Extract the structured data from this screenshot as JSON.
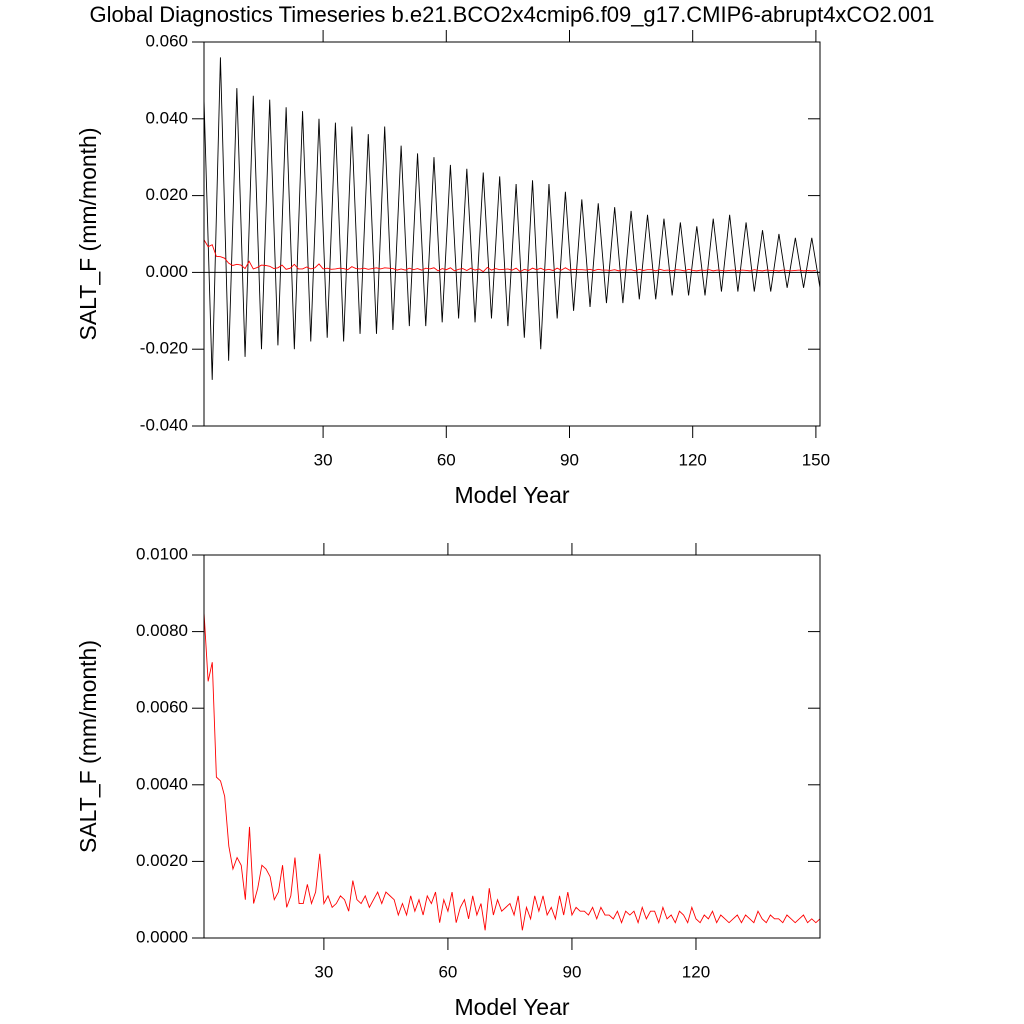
{
  "chart_data": [
    {
      "type": "line",
      "title": "Global Diagnostics Timeseries b.e21.BCO2x4cmip6.f09_g17.CMIP6-abrupt4xCO2.001",
      "x_label": "Model Year",
      "y_label": "SALT_F (mm/month)",
      "xlim": [
        1,
        151
      ],
      "xticks": [
        30,
        60,
        90,
        120,
        150
      ],
      "ylim": [
        -0.04,
        0.06
      ],
      "yticks": [
        {
          "value": -0.04,
          "label": "-0.040"
        },
        {
          "value": -0.02,
          "label": "-0.020"
        },
        {
          "value": 0,
          "label": "0.000"
        },
        {
          "value": 0.02,
          "label": "0.020"
        },
        {
          "value": 0.04,
          "label": "0.040"
        },
        {
          "value": 0.06,
          "label": "0.060"
        }
      ],
      "zero_line": true,
      "series": [
        {
          "color": "#000000",
          "x": [
            1,
            3,
            5,
            7,
            9,
            11,
            13,
            15,
            17,
            19,
            21,
            23,
            25,
            27,
            29,
            31,
            33,
            35,
            37,
            39,
            41,
            43,
            45,
            47,
            49,
            51,
            53,
            55,
            57,
            59,
            61,
            63,
            65,
            67,
            69,
            71,
            73,
            75,
            77,
            79,
            81,
            83,
            85,
            87,
            89,
            91,
            93,
            95,
            97,
            99,
            101,
            103,
            105,
            107,
            109,
            111,
            113,
            115,
            117,
            119,
            121,
            123,
            125,
            127,
            129,
            131,
            133,
            135,
            137,
            139,
            141,
            143,
            145,
            147,
            149,
            151
          ],
          "values": [
            0.045,
            -0.028,
            0.056,
            -0.023,
            0.048,
            -0.022,
            0.046,
            -0.02,
            0.045,
            -0.019,
            0.043,
            -0.02,
            0.042,
            -0.018,
            0.04,
            -0.017,
            0.039,
            -0.018,
            0.038,
            -0.016,
            0.036,
            -0.016,
            0.038,
            -0.015,
            0.033,
            -0.014,
            0.031,
            -0.014,
            0.03,
            -0.013,
            0.028,
            -0.012,
            0.027,
            -0.013,
            0.026,
            -0.012,
            0.025,
            -0.014,
            0.023,
            -0.017,
            0.024,
            -0.02,
            0.023,
            -0.012,
            0.021,
            -0.01,
            0.019,
            -0.009,
            0.018,
            -0.008,
            0.017,
            -0.008,
            0.016,
            -0.007,
            0.015,
            -0.007,
            0.014,
            -0.006,
            0.013,
            -0.006,
            0.012,
            -0.006,
            0.014,
            -0.005,
            0.015,
            -0.005,
            0.013,
            -0.005,
            0.011,
            -0.005,
            0.01,
            -0.004,
            0.009,
            -0.004,
            0.009,
            -0.004
          ]
        },
        {
          "color": "#ff0000",
          "x": [
            1,
            2,
            3,
            4,
            5,
            6,
            7,
            8,
            9,
            10,
            11,
            12,
            13,
            14,
            15,
            16,
            17,
            18,
            19,
            20,
            21,
            22,
            23,
            24,
            25,
            26,
            27,
            28,
            29,
            30,
            31,
            32,
            33,
            34,
            35,
            36,
            37,
            38,
            39,
            40,
            41,
            42,
            43,
            44,
            45,
            46,
            47,
            48,
            49,
            50,
            51,
            52,
            53,
            54,
            55,
            56,
            57,
            58,
            59,
            60,
            61,
            62,
            63,
            64,
            65,
            66,
            67,
            68,
            69,
            70,
            71,
            72,
            73,
            74,
            75,
            76,
            77,
            78,
            79,
            80,
            81,
            82,
            83,
            84,
            85,
            86,
            87,
            88,
            89,
            90,
            91,
            92,
            93,
            94,
            95,
            96,
            97,
            98,
            99,
            100,
            101,
            102,
            103,
            104,
            105,
            106,
            107,
            108,
            109,
            110,
            111,
            112,
            113,
            114,
            115,
            116,
            117,
            118,
            119,
            120,
            121,
            122,
            123,
            124,
            125,
            126,
            127,
            128,
            129,
            130,
            131,
            132,
            133,
            134,
            135,
            136,
            137,
            138,
            139,
            140,
            141,
            142,
            143,
            144,
            145,
            146,
            147,
            148,
            149,
            150
          ],
          "values": [
            0.0085,
            0.0067,
            0.0072,
            0.0042,
            0.0041,
            0.0037,
            0.0024,
            0.0018,
            0.0021,
            0.0019,
            0.001,
            0.0029,
            0.0009,
            0.0013,
            0.0019,
            0.0018,
            0.0016,
            0.001,
            0.0012,
            0.0019,
            0.0008,
            0.0011,
            0.0021,
            0.0009,
            0.0009,
            0.0014,
            0.0009,
            0.0012,
            0.0022,
            0.0009,
            0.0011,
            0.0008,
            0.0009,
            0.0011,
            0.001,
            0.0007,
            0.0015,
            0.001,
            0.0009,
            0.0011,
            0.0008,
            0.001,
            0.0012,
            0.0009,
            0.0012,
            0.0011,
            0.001,
            0.0006,
            0.0009,
            0.0006,
            0.0011,
            0.0007,
            0.001,
            0.0006,
            0.0011,
            0.0009,
            0.0012,
            0.0004,
            0.001,
            0.0007,
            0.0012,
            0.0004,
            0.0008,
            0.001,
            0.0005,
            0.0011,
            0.0006,
            0.0009,
            0.0002,
            0.0013,
            0.0006,
            0.001,
            0.0007,
            0.0008,
            0.0009,
            0.0006,
            0.0011,
            0.0002,
            0.0008,
            0.0005,
            0.0011,
            0.0007,
            0.0011,
            0.0006,
            0.0008,
            0.0005,
            0.0011,
            0.0006,
            0.0012,
            0.0006,
            0.0008,
            0.0007,
            0.0007,
            0.0006,
            0.0008,
            0.0005,
            0.0008,
            0.0006,
            0.0006,
            0.0005,
            0.0007,
            0.0004,
            0.0007,
            0.0006,
            0.0007,
            0.0004,
            0.0008,
            0.0005,
            0.0007,
            0.0007,
            0.0004,
            0.0008,
            0.0005,
            0.0006,
            0.0004,
            0.0007,
            0.0006,
            0.0004,
            0.0008,
            0.0005,
            0.0004,
            0.0006,
            0.0005,
            0.0007,
            0.0004,
            0.0006,
            0.0005,
            0.0004,
            0.0005,
            0.0006,
            0.0004,
            0.0006,
            0.0005,
            0.0004,
            0.0007,
            0.0005,
            0.0004,
            0.0006,
            0.0005,
            0.0005,
            0.0004,
            0.0006,
            0.0005,
            0.0004,
            0.0005,
            0.0006,
            0.0004,
            0.0005,
            0.0004,
            0.0005
          ]
        }
      ]
    },
    {
      "type": "line",
      "x_label": "Model Year",
      "y_label": "SALT_F (mm/month)",
      "xlim": [
        1,
        150
      ],
      "xticks": [
        30,
        60,
        90,
        120
      ],
      "ylim": [
        0,
        0.01
      ],
      "yticks": [
        {
          "value": 0,
          "label": "0.0000"
        },
        {
          "value": 0.002,
          "label": "0.0020"
        },
        {
          "value": 0.004,
          "label": "0.0040"
        },
        {
          "value": 0.006,
          "label": "0.0060"
        },
        {
          "value": 0.008,
          "label": "0.0080"
        },
        {
          "value": 0.01,
          "label": "0.0100"
        }
      ],
      "zero_line": false,
      "series": [
        {
          "color": "#ff0000",
          "x": [
            1,
            2,
            3,
            4,
            5,
            6,
            7,
            8,
            9,
            10,
            11,
            12,
            13,
            14,
            15,
            16,
            17,
            18,
            19,
            20,
            21,
            22,
            23,
            24,
            25,
            26,
            27,
            28,
            29,
            30,
            31,
            32,
            33,
            34,
            35,
            36,
            37,
            38,
            39,
            40,
            41,
            42,
            43,
            44,
            45,
            46,
            47,
            48,
            49,
            50,
            51,
            52,
            53,
            54,
            55,
            56,
            57,
            58,
            59,
            60,
            61,
            62,
            63,
            64,
            65,
            66,
            67,
            68,
            69,
            70,
            71,
            72,
            73,
            74,
            75,
            76,
            77,
            78,
            79,
            80,
            81,
            82,
            83,
            84,
            85,
            86,
            87,
            88,
            89,
            90,
            91,
            92,
            93,
            94,
            95,
            96,
            97,
            98,
            99,
            100,
            101,
            102,
            103,
            104,
            105,
            106,
            107,
            108,
            109,
            110,
            111,
            112,
            113,
            114,
            115,
            116,
            117,
            118,
            119,
            120,
            121,
            122,
            123,
            124,
            125,
            126,
            127,
            128,
            129,
            130,
            131,
            132,
            133,
            134,
            135,
            136,
            137,
            138,
            139,
            140,
            141,
            142,
            143,
            144,
            145,
            146,
            147,
            148,
            149,
            150
          ],
          "values": [
            0.0085,
            0.0067,
            0.0072,
            0.0042,
            0.0041,
            0.0037,
            0.0024,
            0.0018,
            0.0021,
            0.0019,
            0.001,
            0.0029,
            0.0009,
            0.0013,
            0.0019,
            0.0018,
            0.0016,
            0.001,
            0.0012,
            0.0019,
            0.0008,
            0.0011,
            0.0021,
            0.0009,
            0.0009,
            0.0014,
            0.0009,
            0.0012,
            0.0022,
            0.0009,
            0.0011,
            0.0008,
            0.0009,
            0.0011,
            0.001,
            0.0007,
            0.0015,
            0.001,
            0.0009,
            0.0011,
            0.0008,
            0.001,
            0.0012,
            0.0009,
            0.0012,
            0.0011,
            0.001,
            0.0006,
            0.0009,
            0.0006,
            0.0011,
            0.0007,
            0.001,
            0.0006,
            0.0011,
            0.0009,
            0.0012,
            0.0004,
            0.001,
            0.0007,
            0.0012,
            0.0004,
            0.0008,
            0.001,
            0.0005,
            0.0011,
            0.0006,
            0.0009,
            0.0002,
            0.0013,
            0.0006,
            0.001,
            0.0007,
            0.0008,
            0.0009,
            0.0006,
            0.0011,
            0.0002,
            0.0008,
            0.0005,
            0.0011,
            0.0007,
            0.0011,
            0.0006,
            0.0008,
            0.0005,
            0.0011,
            0.0006,
            0.0012,
            0.0006,
            0.0008,
            0.0007,
            0.0007,
            0.0006,
            0.0008,
            0.0005,
            0.0008,
            0.0006,
            0.0006,
            0.0005,
            0.0007,
            0.0004,
            0.0007,
            0.0006,
            0.0007,
            0.0004,
            0.0008,
            0.0005,
            0.0007,
            0.0007,
            0.0004,
            0.0008,
            0.0005,
            0.0006,
            0.0004,
            0.0007,
            0.0006,
            0.0004,
            0.0008,
            0.0005,
            0.0004,
            0.0006,
            0.0005,
            0.0007,
            0.0004,
            0.0006,
            0.0005,
            0.0004,
            0.0005,
            0.0006,
            0.0004,
            0.0006,
            0.0005,
            0.0004,
            0.0007,
            0.0005,
            0.0004,
            0.0006,
            0.0005,
            0.0005,
            0.0004,
            0.0006,
            0.0005,
            0.0004,
            0.0005,
            0.0006,
            0.0004,
            0.0005,
            0.0004,
            0.0005
          ]
        }
      ]
    }
  ]
}
